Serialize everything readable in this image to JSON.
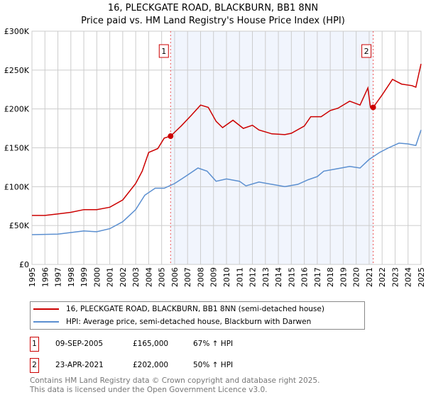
{
  "title_line1": "16, PLECKGATE ROAD, BLACKBURN, BB1 8NN",
  "title_line2": "Price paid vs. HM Land Registry's House Price Index (HPI)",
  "chart_data": {
    "type": "line",
    "title": "16, PLECKGATE ROAD, BLACKBURN, BB1 8NN — Price paid vs. HM Land Registry's House Price Index (HPI)",
    "xlabel": "",
    "ylabel": "",
    "xlim": [
      1995,
      2025
    ],
    "ylim": [
      0,
      300000
    ],
    "y_ticks": [
      0,
      50000,
      100000,
      150000,
      200000,
      250000,
      300000
    ],
    "y_tick_labels": [
      "£0",
      "£50K",
      "£100K",
      "£150K",
      "£200K",
      "£250K",
      "£300K"
    ],
    "x_ticks": [
      1995,
      1996,
      1997,
      1998,
      1999,
      2000,
      2001,
      2002,
      2003,
      2004,
      2005,
      2006,
      2007,
      2008,
      2009,
      2010,
      2011,
      2012,
      2013,
      2014,
      2015,
      2016,
      2017,
      2018,
      2019,
      2020,
      2021,
      2022,
      2023,
      2024,
      2025
    ],
    "grid": true,
    "legend_position": "below",
    "shaded_range": [
      2005.69,
      2021.31
    ],
    "series": [
      {
        "name": "16, PLECKGATE ROAD, BLACKBURN, BB1 8NN (semi-detached house)",
        "color": "#cc0000",
        "x": [
          1995,
          1996,
          1997,
          1998,
          1999,
          2000,
          2001,
          2002,
          2003,
          2003.5,
          2004,
          2004.7,
          2005.2,
          2005.69,
          2006.5,
          2007.3,
          2008,
          2008.6,
          2009.2,
          2009.7,
          2010.5,
          2011.3,
          2012,
          2012.5,
          2013.5,
          2014.5,
          2015,
          2016,
          2016.5,
          2017.3,
          2018,
          2018.6,
          2019.5,
          2020.3,
          2020.9,
          2021.1,
          2021.31,
          2022,
          2022.8,
          2023.5,
          2024.3,
          2024.6,
          2025
        ],
        "y": [
          63000,
          63000,
          65000,
          67000,
          70500,
          70500,
          73600,
          83000,
          104000,
          120000,
          144000,
          149000,
          162500,
          165000,
          178000,
          192000,
          205000,
          202000,
          184000,
          176000,
          185500,
          175000,
          179000,
          173000,
          168000,
          167000,
          168700,
          178000,
          190000,
          190000,
          198000,
          201000,
          210000,
          205000,
          227000,
          202000,
          202000,
          218000,
          238000,
          232000,
          230000,
          228000,
          258000
        ]
      },
      {
        "name": "HPI: Average price, semi-detached house, Blackburn with Darwen",
        "color": "#5b8fd0",
        "x": [
          1995,
          1997,
          1998,
          1999,
          2000,
          2001,
          2002,
          2003,
          2003.7,
          2004.5,
          2005.2,
          2006,
          2007,
          2007.8,
          2008.5,
          2009.2,
          2010,
          2011,
          2011.5,
          2012.5,
          2013.5,
          2014.5,
          2015.5,
          2016.3,
          2017,
          2017.5,
          2018.5,
          2019.5,
          2020.3,
          2021,
          2021.8,
          2022.5,
          2023.3,
          2024,
          2024.6,
          2025
        ],
        "y": [
          38300,
          39000,
          41000,
          43000,
          42000,
          46000,
          55000,
          70500,
          89000,
          98000,
          98000,
          104000,
          115000,
          124000,
          120000,
          107000,
          110000,
          107000,
          101000,
          106000,
          103000,
          100000,
          103000,
          109000,
          113000,
          120000,
          123000,
          126000,
          124000,
          135000,
          144000,
          150000,
          156000,
          155000,
          153000,
          173000
        ]
      }
    ],
    "markers": [
      {
        "label": "1",
        "x": 2005.69,
        "y": 165000
      },
      {
        "label": "2",
        "x": 2021.31,
        "y": 202000
      }
    ]
  },
  "legend": {
    "property_label": "16, PLECKGATE ROAD, BLACKBURN, BB1 8NN (semi-detached house)",
    "hpi_label": "HPI: Average price, semi-detached house, Blackburn with Darwen"
  },
  "sales": [
    {
      "num": "1",
      "date": "09-SEP-2005",
      "price": "£165,000",
      "hpi": "67% ↑ HPI"
    },
    {
      "num": "2",
      "date": "23-APR-2021",
      "price": "£202,000",
      "hpi": "50% ↑ HPI"
    }
  ],
  "footer_line1": "Contains HM Land Registry data © Crown copyright and database right 2025.",
  "footer_line2": "This data is licensed under the Open Government Licence v3.0."
}
